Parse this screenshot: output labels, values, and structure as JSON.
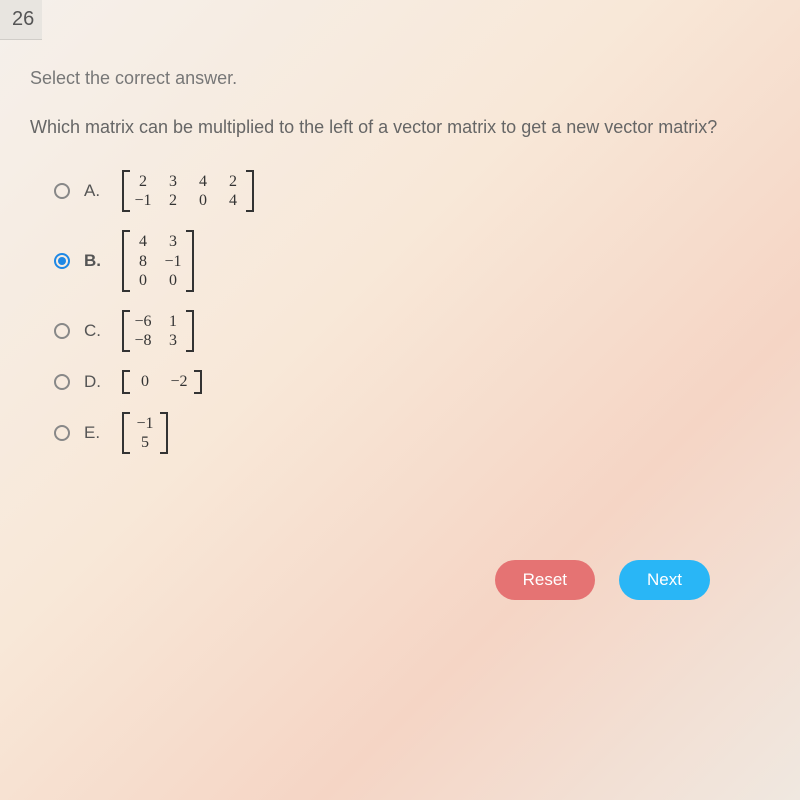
{
  "question_number": "26",
  "instruction": "Select the correct answer.",
  "question": "Which matrix can be multiplied to the left of a vector matrix to get a new vector matrix?",
  "options": {
    "A": {
      "letter": "A.",
      "selected": false,
      "rows": [
        [
          "2",
          "3",
          "4",
          "2"
        ],
        [
          "−1",
          "2",
          "0",
          "4"
        ]
      ]
    },
    "B": {
      "letter": "B.",
      "selected": true,
      "rows": [
        [
          "4",
          "3"
        ],
        [
          "8",
          "−1"
        ],
        [
          "0",
          "0"
        ]
      ]
    },
    "C": {
      "letter": "C.",
      "selected": false,
      "rows": [
        [
          "−6",
          "1"
        ],
        [
          "−8",
          "3"
        ]
      ]
    },
    "D": {
      "letter": "D.",
      "selected": false,
      "rows": [
        [
          "0",
          "−2"
        ]
      ]
    },
    "E": {
      "letter": "E.",
      "selected": false,
      "rows": [
        [
          "−1"
        ],
        [
          "5"
        ]
      ]
    }
  },
  "buttons": {
    "reset": "Reset",
    "next": "Next"
  },
  "colors": {
    "selected_radio": "#1e88e5",
    "reset_btn": "#e57373",
    "next_btn": "#29b6f6",
    "text": "#666666",
    "bracket": "#333333"
  }
}
